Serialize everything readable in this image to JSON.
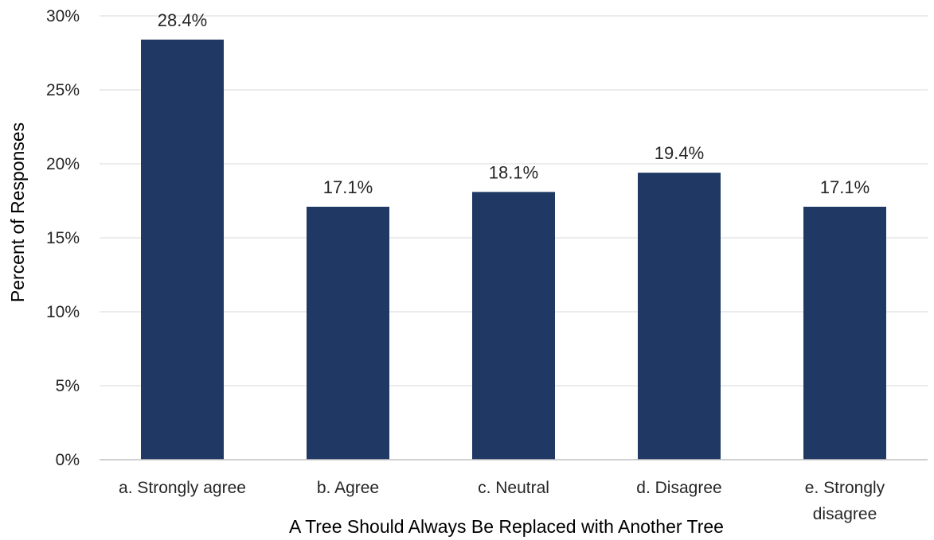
{
  "chart_data": {
    "type": "bar",
    "categories": [
      [
        "a. Strongly agree"
      ],
      [
        "b. Agree"
      ],
      [
        "c. Neutral"
      ],
      [
        "d. Disagree"
      ],
      [
        "e. Strongly",
        "disagree"
      ]
    ],
    "values": [
      28.4,
      17.1,
      18.1,
      19.4,
      17.1
    ],
    "data_labels": [
      "28.4%",
      "17.1%",
      "18.1%",
      "19.4%",
      "17.1%"
    ],
    "xlabel": "A Tree Should Always Be Replaced with Another Tree",
    "ylabel": "Percent of Responses",
    "ylim": [
      0,
      30
    ],
    "yticks": [
      0,
      5,
      10,
      15,
      20,
      25,
      30
    ],
    "ytick_labels": [
      "0%",
      "5%",
      "10%",
      "15%",
      "20%",
      "25%",
      "30%"
    ],
    "grid": true,
    "legend": "none",
    "bar_color": "#1f3864"
  }
}
